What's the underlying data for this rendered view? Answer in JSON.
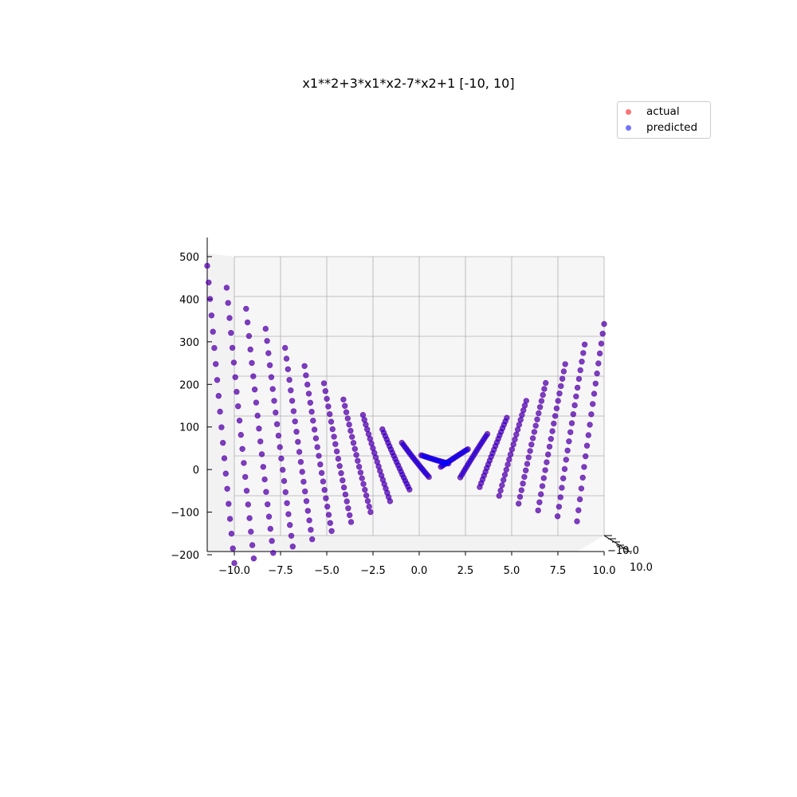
{
  "chart_data": {
    "type": "scatter",
    "projection": "3d",
    "title": "x1**2+3*x1*x2-7*x2+1 [-10, 10]",
    "xlabel": "",
    "ylabel": "",
    "zlabel": "",
    "x_range": [
      -10,
      10
    ],
    "y_range": [
      -10,
      10
    ],
    "z_range": [
      -200,
      500
    ],
    "grid_points_per_axis": 20,
    "x_ticks": [
      "−10.0",
      "−7.5",
      "−5.0",
      "−2.5",
      "0.0",
      "2.5",
      "5.0",
      "7.5",
      "10.0"
    ],
    "y_ticks": [
      "−10.0",
      "10.0"
    ],
    "z_ticks": [
      "500",
      "400",
      "300",
      "200",
      "100",
      "0",
      "−100",
      "−200"
    ],
    "grid": true,
    "legend_position": "top-right",
    "series": [
      {
        "name": "actual",
        "color": "#ff0000",
        "alpha": 0.5,
        "function": "x1**2+3*x1*x2-7*x2+1"
      },
      {
        "name": "predicted",
        "color": "#0000ff",
        "alpha": 0.5,
        "function": "x1**2+3*x1*x2-7*x2+1"
      }
    ]
  }
}
